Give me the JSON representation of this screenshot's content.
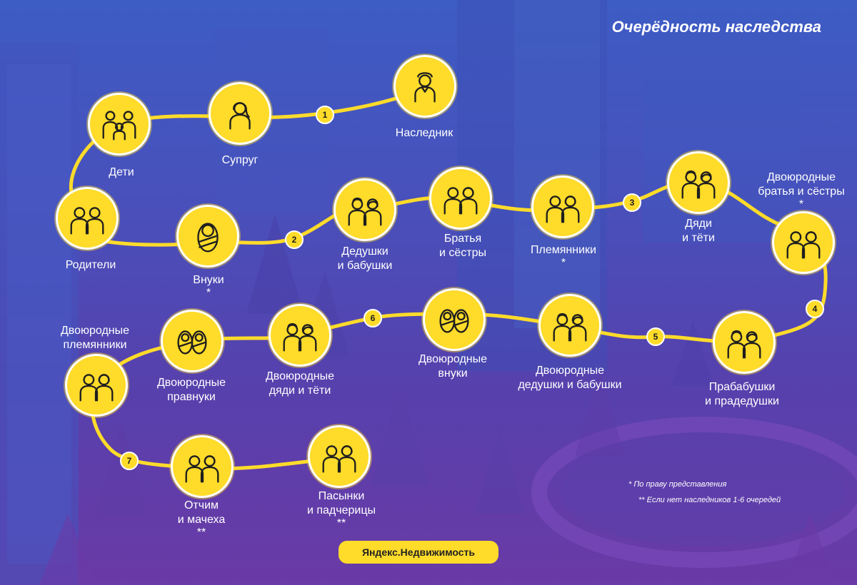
{
  "title": "Очерёдность наследства",
  "nodes": [
    {
      "id": "heir",
      "lines": [
        "Наследник"
      ],
      "note": "",
      "icon": "old-man-icon"
    },
    {
      "id": "spouse",
      "lines": [
        "Супруг"
      ],
      "note": "",
      "icon": "spouse-woman-icon"
    },
    {
      "id": "children",
      "lines": [
        "Дети"
      ],
      "note": "",
      "icon": "children-family-icon"
    },
    {
      "id": "parents",
      "lines": [
        "Родители"
      ],
      "note": "",
      "icon": "parents-couple-icon"
    },
    {
      "id": "grandchildren",
      "lines": [
        "Внуки"
      ],
      "note": "*",
      "icon": "baby-icon"
    },
    {
      "id": "grandparents",
      "lines": [
        "Дедушки",
        "и бабушки"
      ],
      "note": "",
      "icon": "elderly-couple-icon"
    },
    {
      "id": "siblings",
      "lines": [
        "Братья",
        "и сёстры"
      ],
      "note": "",
      "icon": "couple-icon"
    },
    {
      "id": "nephews",
      "lines": [
        "Племянники"
      ],
      "note": "*",
      "icon": "couple-icon"
    },
    {
      "id": "uncles-aunts",
      "lines": [
        "Дяди",
        "и тёти"
      ],
      "note": "",
      "icon": "elderly-couple-icon"
    },
    {
      "id": "cousins",
      "lines": [
        "Двоюродные",
        "братья и сёстры"
      ],
      "note": "*",
      "icon": "couple-icon"
    },
    {
      "id": "great-grandparents",
      "lines": [
        "Прабабушки",
        "и прадедушки"
      ],
      "note": "",
      "icon": "elderly-couple-icon"
    },
    {
      "id": "great-uncles-grandparents",
      "lines": [
        "Двоюродные",
        "дедушки и бабушки"
      ],
      "note": "",
      "icon": "elderly-couple-icon"
    },
    {
      "id": "cousin-grandchildren",
      "lines": [
        "Двоюродные",
        "внуки"
      ],
      "note": "",
      "icon": "two-babies-icon"
    },
    {
      "id": "cousin-uncles-aunts",
      "lines": [
        "Двоюродные",
        "дяди и тёти"
      ],
      "note": "",
      "icon": "elderly-couple-icon"
    },
    {
      "id": "cousin-great-grandchildren",
      "lines": [
        "Двоюродные",
        "правнуки"
      ],
      "note": "",
      "icon": "two-babies-icon"
    },
    {
      "id": "cousin-nephews",
      "lines": [
        "Двоюродные",
        "племянники"
      ],
      "note": "",
      "icon": "couple-icon"
    },
    {
      "id": "step-parents",
      "lines": [
        "Отчим",
        "и мачеха"
      ],
      "note": "**",
      "icon": "couple-icon"
    },
    {
      "id": "step-children",
      "lines": [
        "Пасынки",
        "и падчерицы"
      ],
      "note": "**",
      "icon": "couple-icon"
    }
  ],
  "queue_badges": [
    "1",
    "2",
    "3",
    "4",
    "5",
    "6",
    "7"
  ],
  "footnotes": [
    "* По праву представления",
    "** Если нет наследников 1-6 очередей"
  ],
  "brand": "Яндекс.Недвижимость",
  "colors": {
    "accent": "#ffdb2a",
    "background_top": "#3d5cc4",
    "background_bottom": "#6a3aa6",
    "text": "#ffffff"
  }
}
